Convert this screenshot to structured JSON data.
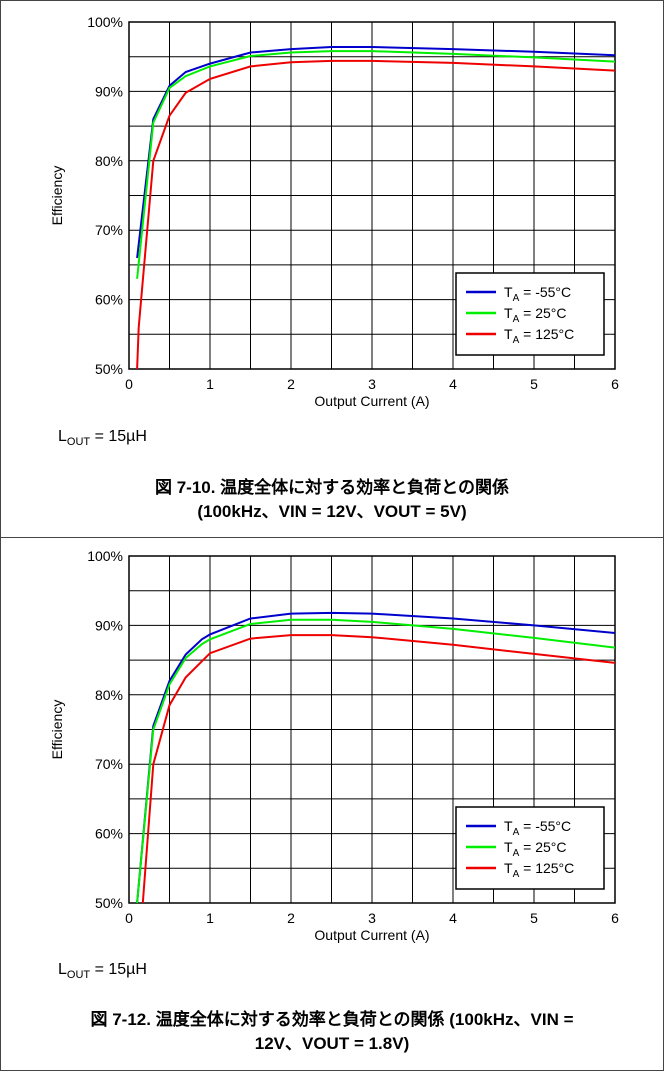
{
  "charts": [
    {
      "note_main": "L",
      "note_sub": "OUT",
      "note_rest": " = 15µH",
      "caption_line1": "図 7-10. 温度全体に対する効率と負荷との関係",
      "caption_line2": "(100kHz、VIN = 12V、VOUT = 5V)"
    },
    {
      "note_main": "L",
      "note_sub": "OUT",
      "note_rest": " = 15µH",
      "caption_line1": "図 7-12. 温度全体に対する効率と負荷との関係 (100kHz、VIN =",
      "caption_line2": "12V、VOUT = 1.8V)"
    }
  ],
  "chart_data": [
    {
      "type": "line",
      "xlabel": "Output Current (A)",
      "ylabel": "Efficiency",
      "xlim": [
        0,
        6
      ],
      "ylim": [
        50,
        100
      ],
      "xticks": [
        "0",
        "1",
        "2",
        "3",
        "4",
        "5",
        "6"
      ],
      "yticks": [
        "50%",
        "60%",
        "70%",
        "80%",
        "90%",
        "100%"
      ],
      "grid": true,
      "legend_position": "bottom-right",
      "series": [
        {
          "name": "T_A = -55°C",
          "legend_sym": "T",
          "legend_sub": "A",
          "legend_rest": " = -55°C",
          "color": "#0000cc",
          "points": [
            [
              0.1,
              66
            ],
            [
              0.3,
              86
            ],
            [
              0.5,
              90.8
            ],
            [
              0.7,
              92.8
            ],
            [
              1,
              94
            ],
            [
              1.5,
              95.6
            ],
            [
              2,
              96.1
            ],
            [
              2.5,
              96.4
            ],
            [
              3,
              96.4
            ],
            [
              4,
              96.1
            ],
            [
              5,
              95.7
            ],
            [
              6,
              95.2
            ]
          ]
        },
        {
          "name": "T_A = 25°C",
          "legend_sym": "T",
          "legend_sub": "A",
          "legend_rest": " = 25°C",
          "color": "#00ee00",
          "points": [
            [
              0.1,
              63
            ],
            [
              0.3,
              85.5
            ],
            [
              0.5,
              90.5
            ],
            [
              0.7,
              92.2
            ],
            [
              1,
              93.6
            ],
            [
              1.5,
              95.1
            ],
            [
              2,
              95.6
            ],
            [
              2.5,
              95.8
            ],
            [
              3,
              95.8
            ],
            [
              4,
              95.4
            ],
            [
              5,
              94.9
            ],
            [
              6,
              94.3
            ]
          ]
        },
        {
          "name": "T_A = 125°C",
          "legend_sym": "T",
          "legend_sub": "A",
          "legend_rest": " = 125°C",
          "color": "#ee0000",
          "points": [
            [
              0.1,
              50
            ],
            [
              0.12,
              56
            ],
            [
              0.3,
              80
            ],
            [
              0.5,
              86.5
            ],
            [
              0.7,
              89.8
            ],
            [
              1,
              91.8
            ],
            [
              1.5,
              93.6
            ],
            [
              2,
              94.2
            ],
            [
              2.5,
              94.4
            ],
            [
              3,
              94.4
            ],
            [
              4,
              94.1
            ],
            [
              5,
              93.6
            ],
            [
              6,
              93
            ]
          ]
        }
      ]
    },
    {
      "type": "line",
      "xlabel": "Output Current (A)",
      "ylabel": "Efficiency",
      "xlim": [
        0,
        6
      ],
      "ylim": [
        50,
        100
      ],
      "xticks": [
        "0",
        "1",
        "2",
        "3",
        "4",
        "5",
        "6"
      ],
      "yticks": [
        "50%",
        "60%",
        "70%",
        "80%",
        "90%",
        "100%"
      ],
      "grid": true,
      "legend_position": "bottom-right",
      "series": [
        {
          "name": "T_A = -55°C",
          "legend_sym": "T",
          "legend_sub": "A",
          "legend_rest": " = -55°C",
          "color": "#0000cc",
          "points": [
            [
              0.1,
              50
            ],
            [
              0.3,
              75.5
            ],
            [
              0.5,
              82
            ],
            [
              0.7,
              85.8
            ],
            [
              0.9,
              88
            ],
            [
              1,
              88.7
            ],
            [
              1.5,
              91
            ],
            [
              2,
              91.7
            ],
            [
              2.5,
              91.8
            ],
            [
              3,
              91.7
            ],
            [
              4,
              91
            ],
            [
              5,
              90
            ],
            [
              6,
              88.9
            ]
          ]
        },
        {
          "name": "T_A = 25°C",
          "legend_sym": "T",
          "legend_sub": "A",
          "legend_rest": " = 25°C",
          "color": "#00ee00",
          "points": [
            [
              0.1,
              50
            ],
            [
              0.3,
              75
            ],
            [
              0.5,
              81.5
            ],
            [
              0.7,
              85.3
            ],
            [
              0.9,
              87.3
            ],
            [
              1,
              88
            ],
            [
              1.5,
              90.2
            ],
            [
              2,
              90.8
            ],
            [
              2.5,
              90.8
            ],
            [
              3,
              90.5
            ],
            [
              4,
              89.5
            ],
            [
              5,
              88.2
            ],
            [
              6,
              86.8
            ]
          ]
        },
        {
          "name": "T_A = 125°C",
          "legend_sym": "T",
          "legend_sub": "A",
          "legend_rest": " = 125°C",
          "color": "#ee0000",
          "points": [
            [
              0.17,
              50
            ],
            [
              0.3,
              70
            ],
            [
              0.5,
              78.5
            ],
            [
              0.7,
              82.5
            ],
            [
              1,
              86
            ],
            [
              1.5,
              88.1
            ],
            [
              2,
              88.6
            ],
            [
              2.5,
              88.6
            ],
            [
              3,
              88.3
            ],
            [
              4,
              87.2
            ],
            [
              5,
              85.9
            ],
            [
              6,
              84.6
            ]
          ]
        }
      ]
    }
  ]
}
